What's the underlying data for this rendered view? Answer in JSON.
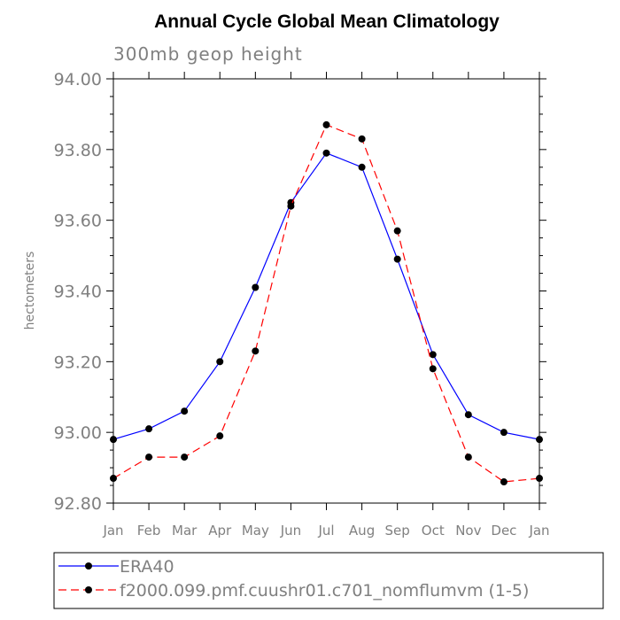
{
  "chart_data": {
    "type": "line",
    "title": "Annual Cycle Global Mean Climatology",
    "subtitle": "300mb geop height",
    "xlabel": "",
    "ylabel": "hectometers",
    "categories": [
      "Jan",
      "Feb",
      "Mar",
      "Apr",
      "May",
      "Jun",
      "Jul",
      "Aug",
      "Sep",
      "Oct",
      "Nov",
      "Dec",
      "Jan"
    ],
    "ylim": [
      92.8,
      94.0
    ],
    "yticks": [
      92.8,
      93.0,
      93.2,
      93.4,
      93.6,
      93.8,
      94.0
    ],
    "ytick_labels": [
      "92.80",
      "93.00",
      "93.20",
      "93.40",
      "93.60",
      "93.80",
      "94.00"
    ],
    "series": [
      {
        "name": "ERA40",
        "color": "#0000ff",
        "dash": "solid",
        "marker": "circle",
        "values": [
          92.98,
          93.01,
          93.06,
          93.2,
          93.41,
          93.65,
          93.79,
          93.75,
          93.49,
          93.22,
          93.05,
          93.0,
          92.98
        ]
      },
      {
        "name": "f2000.099.pmf.cuushr01.c701_nomflumvm (1-5)",
        "color": "#ff0000",
        "dash": "dashed",
        "marker": "circle",
        "values": [
          92.87,
          92.93,
          92.93,
          92.99,
          93.23,
          93.64,
          93.87,
          93.83,
          93.57,
          93.18,
          92.93,
          92.86,
          92.87
        ]
      }
    ],
    "legend_position": "bottom-left"
  }
}
